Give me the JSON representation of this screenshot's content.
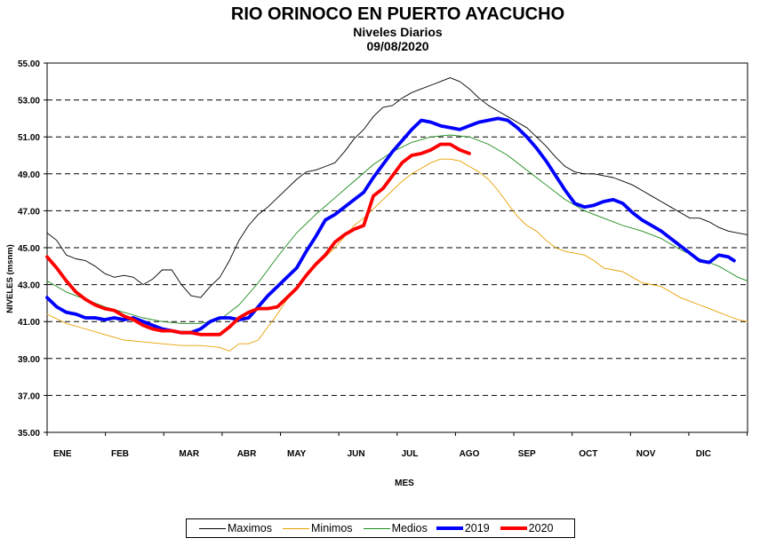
{
  "title": "RIO ORINOCO  EN PUERTO AYACUCHO",
  "subtitle": "Niveles Diarios",
  "date": "09/08/2020",
  "chart_data": {
    "type": "line",
    "xlabel": "MES",
    "ylabel": "NIVELES (msnm)",
    "ylim": [
      35,
      55
    ],
    "yticks": [
      "35.00",
      "37.00",
      "39.00",
      "41.00",
      "43.00",
      "45.00",
      "47.00",
      "49.00",
      "51.00",
      "53.00",
      "55.00"
    ],
    "xlim": [
      0,
      365
    ],
    "months": [
      {
        "label": "ENE",
        "day": 8
      },
      {
        "label": "FEB",
        "day": 38
      },
      {
        "label": "MAR",
        "day": 74
      },
      {
        "label": "ABR",
        "day": 104
      },
      {
        "label": "MAY",
        "day": 130
      },
      {
        "label": "JUN",
        "day": 161
      },
      {
        "label": "JUL",
        "day": 189
      },
      {
        "label": "AGO",
        "day": 220
      },
      {
        "label": "SEP",
        "day": 250
      },
      {
        "label": "OCT",
        "day": 282
      },
      {
        "label": "NOV",
        "day": 312
      },
      {
        "label": "DIC",
        "day": 342
      }
    ],
    "grid": "horizontal-dashed",
    "legend_position": "bottom",
    "series": [
      {
        "name": "Maximos",
        "color": "#000000",
        "width": 0.9,
        "points": [
          [
            0,
            45.8
          ],
          [
            5,
            45.4
          ],
          [
            10,
            44.6
          ],
          [
            15,
            44.4
          ],
          [
            20,
            44.3
          ],
          [
            25,
            44.0
          ],
          [
            30,
            43.6
          ],
          [
            35,
            43.4
          ],
          [
            40,
            43.5
          ],
          [
            45,
            43.4
          ],
          [
            50,
            43.0
          ],
          [
            55,
            43.3
          ],
          [
            60,
            43.8
          ],
          [
            65,
            43.8
          ],
          [
            70,
            43.0
          ],
          [
            75,
            42.4
          ],
          [
            80,
            42.3
          ],
          [
            85,
            42.9
          ],
          [
            90,
            43.4
          ],
          [
            95,
            44.3
          ],
          [
            100,
            45.4
          ],
          [
            105,
            46.2
          ],
          [
            110,
            46.8
          ],
          [
            115,
            47.2
          ],
          [
            120,
            47.7
          ],
          [
            125,
            48.2
          ],
          [
            130,
            48.7
          ],
          [
            135,
            49.1
          ],
          [
            140,
            49.2
          ],
          [
            145,
            49.4
          ],
          [
            150,
            49.6
          ],
          [
            155,
            50.2
          ],
          [
            160,
            50.9
          ],
          [
            165,
            51.4
          ],
          [
            170,
            52.1
          ],
          [
            175,
            52.6
          ],
          [
            180,
            52.7
          ],
          [
            185,
            53.1
          ],
          [
            190,
            53.4
          ],
          [
            195,
            53.6
          ],
          [
            200,
            53.8
          ],
          [
            205,
            54.0
          ],
          [
            210,
            54.2
          ],
          [
            215,
            54.0
          ],
          [
            220,
            53.6
          ],
          [
            225,
            53.1
          ],
          [
            230,
            52.7
          ],
          [
            235,
            52.4
          ],
          [
            240,
            52.1
          ],
          [
            245,
            51.8
          ],
          [
            250,
            51.5
          ],
          [
            255,
            51.0
          ],
          [
            260,
            50.5
          ],
          [
            265,
            49.9
          ],
          [
            270,
            49.4
          ],
          [
            275,
            49.1
          ],
          [
            280,
            49.0
          ],
          [
            285,
            49.0
          ],
          [
            290,
            48.9
          ],
          [
            295,
            48.8
          ],
          [
            300,
            48.6
          ],
          [
            305,
            48.4
          ],
          [
            310,
            48.1
          ],
          [
            315,
            47.8
          ],
          [
            320,
            47.5
          ],
          [
            325,
            47.2
          ],
          [
            330,
            46.9
          ],
          [
            335,
            46.6
          ],
          [
            340,
            46.6
          ],
          [
            345,
            46.4
          ],
          [
            350,
            46.1
          ],
          [
            355,
            45.9
          ],
          [
            360,
            45.8
          ],
          [
            365,
            45.7
          ]
        ]
      },
      {
        "name": "Minimos",
        "color": "#e8a000",
        "width": 0.9,
        "points": [
          [
            0,
            41.4
          ],
          [
            10,
            40.9
          ],
          [
            20,
            40.6
          ],
          [
            30,
            40.3
          ],
          [
            40,
            40.0
          ],
          [
            50,
            39.9
          ],
          [
            60,
            39.8
          ],
          [
            70,
            39.7
          ],
          [
            80,
            39.7
          ],
          [
            90,
            39.6
          ],
          [
            95,
            39.4
          ],
          [
            100,
            39.8
          ],
          [
            105,
            39.8
          ],
          [
            110,
            40.0
          ],
          [
            115,
            40.7
          ],
          [
            120,
            41.4
          ],
          [
            125,
            42.2
          ],
          [
            130,
            42.8
          ],
          [
            135,
            43.4
          ],
          [
            140,
            44.0
          ],
          [
            145,
            44.5
          ],
          [
            150,
            45.0
          ],
          [
            155,
            45.6
          ],
          [
            160,
            46.2
          ],
          [
            165,
            46.6
          ],
          [
            170,
            47.1
          ],
          [
            175,
            47.6
          ],
          [
            180,
            48.1
          ],
          [
            185,
            48.6
          ],
          [
            190,
            49.0
          ],
          [
            195,
            49.3
          ],
          [
            200,
            49.6
          ],
          [
            205,
            49.8
          ],
          [
            210,
            49.8
          ],
          [
            215,
            49.7
          ],
          [
            220,
            49.4
          ],
          [
            225,
            49.1
          ],
          [
            230,
            48.7
          ],
          [
            235,
            48.1
          ],
          [
            240,
            47.4
          ],
          [
            245,
            46.7
          ],
          [
            250,
            46.2
          ],
          [
            255,
            45.9
          ],
          [
            260,
            45.4
          ],
          [
            265,
            45.0
          ],
          [
            270,
            44.8
          ],
          [
            275,
            44.7
          ],
          [
            280,
            44.6
          ],
          [
            285,
            44.3
          ],
          [
            290,
            43.9
          ],
          [
            295,
            43.8
          ],
          [
            300,
            43.7
          ],
          [
            305,
            43.4
          ],
          [
            310,
            43.1
          ],
          [
            315,
            43.0
          ],
          [
            320,
            42.9
          ],
          [
            325,
            42.6
          ],
          [
            330,
            42.3
          ],
          [
            335,
            42.1
          ],
          [
            340,
            41.9
          ],
          [
            345,
            41.7
          ],
          [
            350,
            41.5
          ],
          [
            355,
            41.3
          ],
          [
            360,
            41.1
          ],
          [
            365,
            41.0
          ]
        ]
      },
      {
        "name": "Medios",
        "color": "#1a8a1a",
        "width": 0.9,
        "points": [
          [
            0,
            43.2
          ],
          [
            10,
            42.6
          ],
          [
            20,
            42.2
          ],
          [
            30,
            41.8
          ],
          [
            40,
            41.5
          ],
          [
            50,
            41.2
          ],
          [
            60,
            41.0
          ],
          [
            70,
            40.9
          ],
          [
            80,
            40.9
          ],
          [
            90,
            41.1
          ],
          [
            100,
            41.9
          ],
          [
            110,
            43.1
          ],
          [
            120,
            44.5
          ],
          [
            130,
            45.8
          ],
          [
            140,
            46.8
          ],
          [
            150,
            47.7
          ],
          [
            160,
            48.6
          ],
          [
            170,
            49.5
          ],
          [
            180,
            50.2
          ],
          [
            190,
            50.7
          ],
          [
            200,
            51.0
          ],
          [
            210,
            51.1
          ],
          [
            220,
            51.0
          ],
          [
            230,
            50.6
          ],
          [
            240,
            50.0
          ],
          [
            250,
            49.2
          ],
          [
            260,
            48.4
          ],
          [
            270,
            47.6
          ],
          [
            280,
            47.0
          ],
          [
            290,
            46.6
          ],
          [
            300,
            46.2
          ],
          [
            310,
            45.9
          ],
          [
            320,
            45.5
          ],
          [
            330,
            44.9
          ],
          [
            340,
            44.4
          ],
          [
            350,
            44.0
          ],
          [
            355,
            43.7
          ],
          [
            360,
            43.4
          ],
          [
            365,
            43.2
          ]
        ]
      },
      {
        "name": "2019",
        "color": "#0000ff",
        "width": 3.8,
        "points": [
          [
            0,
            42.3
          ],
          [
            5,
            41.8
          ],
          [
            10,
            41.5
          ],
          [
            15,
            41.4
          ],
          [
            20,
            41.2
          ],
          [
            25,
            41.2
          ],
          [
            30,
            41.1
          ],
          [
            35,
            41.2
          ],
          [
            40,
            41.1
          ],
          [
            45,
            41.2
          ],
          [
            50,
            41.0
          ],
          [
            55,
            40.8
          ],
          [
            60,
            40.6
          ],
          [
            65,
            40.5
          ],
          [
            70,
            40.4
          ],
          [
            75,
            40.4
          ],
          [
            80,
            40.6
          ],
          [
            85,
            41.0
          ],
          [
            90,
            41.2
          ],
          [
            95,
            41.2
          ],
          [
            100,
            41.1
          ],
          [
            105,
            41.2
          ],
          [
            110,
            41.8
          ],
          [
            115,
            42.4
          ],
          [
            120,
            42.9
          ],
          [
            125,
            43.4
          ],
          [
            130,
            43.9
          ],
          [
            135,
            44.8
          ],
          [
            140,
            45.6
          ],
          [
            145,
            46.5
          ],
          [
            150,
            46.8
          ],
          [
            155,
            47.2
          ],
          [
            160,
            47.6
          ],
          [
            165,
            48.0
          ],
          [
            170,
            48.8
          ],
          [
            175,
            49.5
          ],
          [
            180,
            50.2
          ],
          [
            185,
            50.8
          ],
          [
            190,
            51.4
          ],
          [
            195,
            51.9
          ],
          [
            200,
            51.8
          ],
          [
            205,
            51.6
          ],
          [
            210,
            51.5
          ],
          [
            215,
            51.4
          ],
          [
            220,
            51.6
          ],
          [
            225,
            51.8
          ],
          [
            230,
            51.9
          ],
          [
            235,
            52.0
          ],
          [
            240,
            51.9
          ],
          [
            245,
            51.5
          ],
          [
            250,
            51.0
          ],
          [
            255,
            50.4
          ],
          [
            260,
            49.7
          ],
          [
            265,
            48.9
          ],
          [
            270,
            48.1
          ],
          [
            275,
            47.4
          ],
          [
            280,
            47.2
          ],
          [
            285,
            47.3
          ],
          [
            290,
            47.5
          ],
          [
            295,
            47.6
          ],
          [
            300,
            47.4
          ],
          [
            305,
            46.9
          ],
          [
            310,
            46.5
          ],
          [
            315,
            46.2
          ],
          [
            320,
            45.9
          ],
          [
            325,
            45.5
          ],
          [
            330,
            45.1
          ],
          [
            335,
            44.7
          ],
          [
            340,
            44.3
          ],
          [
            345,
            44.2
          ],
          [
            350,
            44.6
          ],
          [
            355,
            44.5
          ],
          [
            358,
            44.3
          ]
        ]
      },
      {
        "name": "2020",
        "color": "#ff0000",
        "width": 3.8,
        "points": [
          [
            0,
            44.5
          ],
          [
            5,
            43.9
          ],
          [
            10,
            43.2
          ],
          [
            15,
            42.6
          ],
          [
            20,
            42.2
          ],
          [
            25,
            41.9
          ],
          [
            30,
            41.7
          ],
          [
            35,
            41.6
          ],
          [
            40,
            41.3
          ],
          [
            45,
            41.1
          ],
          [
            50,
            40.8
          ],
          [
            55,
            40.6
          ],
          [
            60,
            40.5
          ],
          [
            65,
            40.5
          ],
          [
            70,
            40.4
          ],
          [
            75,
            40.4
          ],
          [
            80,
            40.3
          ],
          [
            85,
            40.3
          ],
          [
            90,
            40.3
          ],
          [
            95,
            40.7
          ],
          [
            100,
            41.2
          ],
          [
            105,
            41.5
          ],
          [
            110,
            41.7
          ],
          [
            115,
            41.7
          ],
          [
            120,
            41.8
          ],
          [
            125,
            42.3
          ],
          [
            130,
            42.8
          ],
          [
            135,
            43.5
          ],
          [
            140,
            44.1
          ],
          [
            145,
            44.6
          ],
          [
            150,
            45.3
          ],
          [
            155,
            45.7
          ],
          [
            160,
            46.0
          ],
          [
            165,
            46.2
          ],
          [
            170,
            47.8
          ],
          [
            175,
            48.2
          ],
          [
            180,
            48.9
          ],
          [
            185,
            49.6
          ],
          [
            190,
            50.0
          ],
          [
            195,
            50.1
          ],
          [
            200,
            50.3
          ],
          [
            205,
            50.6
          ],
          [
            210,
            50.6
          ],
          [
            215,
            50.3
          ],
          [
            220,
            50.1
          ]
        ]
      }
    ]
  }
}
